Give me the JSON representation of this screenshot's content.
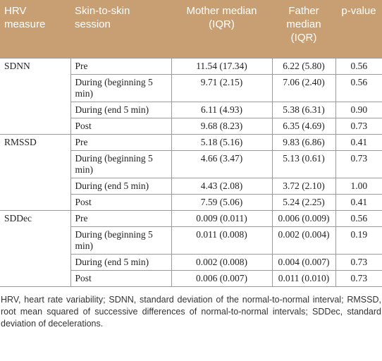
{
  "table": {
    "headers": [
      "HRV measure",
      "Skin-to-skin session",
      "Mother median (IQR)",
      "Father median (IQR)",
      "p-value"
    ],
    "groups": [
      {
        "measure": "SDNN",
        "rows": [
          [
            "Pre",
            "11.54 (17.34)",
            "6.22 (5.80)",
            "0.56"
          ],
          [
            "During (beginning 5 min)",
            "9.71 (2.15)",
            "7.06 (2.40)",
            "0.56"
          ],
          [
            "During (end 5 min)",
            "6.11 (4.93)",
            "5.38 (6.31)",
            "0.90"
          ],
          [
            "Post",
            "9.68 (8.23)",
            "6.35 (4.69)",
            "0.73"
          ]
        ]
      },
      {
        "measure": "RMSSD",
        "rows": [
          [
            "Pre",
            "5.18 (5.16)",
            "9.83 (6.86)",
            "0.41"
          ],
          [
            "During (beginning 5 min)",
            "4.66 (3.47)",
            "5.13 (0.61)",
            "0.73"
          ],
          [
            "During (end 5 min)",
            "4.43 (2.08)",
            "3.72 (2.10)",
            "1.00"
          ],
          [
            "Post",
            "7.59 (5.06)",
            "5.24 (2.25)",
            "0.41"
          ]
        ]
      },
      {
        "measure": "SDDec",
        "rows": [
          [
            "Pre",
            "0.009 (0.011)",
            "0.006 (0.009)",
            "0.56"
          ],
          [
            "During (beginning 5 min)",
            "0.011 (0.008)",
            "0.002 (0.004)",
            "0.19"
          ],
          [
            "During (end 5 min)",
            "0.002 (0.008)",
            "0.004 (0.007)",
            "0.73"
          ],
          [
            "Post",
            "0.006 (0.007)",
            "0.011 (0.010)",
            "0.73"
          ]
        ]
      }
    ]
  },
  "footnote": "HRV, heart rate variability; SDNN, standard deviation of the normal-to-normal interval; RMSSD, root mean squared of successive differences of normal-to-normal intervals; SDDec, standard deviation of decelerations."
}
